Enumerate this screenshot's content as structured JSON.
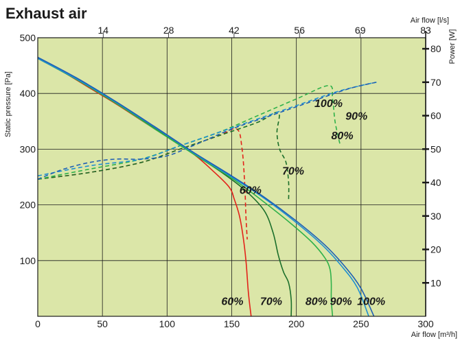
{
  "chart_data": {
    "type": "line",
    "title": "Exhaust air",
    "x_bottom": {
      "label": "Air flow [m³/h]",
      "range": [
        0,
        300
      ],
      "ticks": [
        "0",
        "50",
        "100",
        "150",
        "200",
        "250",
        "300"
      ]
    },
    "x_top": {
      "label": "Air flow [l/s]",
      "range": [
        0,
        83
      ],
      "ticks": [
        "14",
        "28",
        "42",
        "56",
        "69",
        "83"
      ]
    },
    "y_left": {
      "label": "Static pressure [Pa]",
      "range": [
        0,
        500
      ],
      "ticks": [
        "100",
        "200",
        "300",
        "400",
        "500"
      ]
    },
    "y_right": {
      "label": "Power [W]",
      "range": [
        0,
        83.3
      ],
      "ticks": [
        "10",
        "20",
        "30",
        "40",
        "50",
        "60",
        "70",
        "80"
      ]
    },
    "grid": true,
    "background": "#dbe6a8",
    "colors": {
      "60%": "#e32119",
      "70%": "#1a6e2a",
      "80%": "#2fb14a",
      "90%": "#1f8fd0",
      "100%": "#1f5fb4"
    },
    "series": [
      {
        "name": "60%",
        "kind": "pressure",
        "points": [
          [
            0,
            463
          ],
          [
            20,
            438
          ],
          [
            40,
            410
          ],
          [
            60,
            382
          ],
          [
            80,
            352
          ],
          [
            100,
            322
          ],
          [
            120,
            292
          ],
          [
            135,
            262
          ],
          [
            148,
            232
          ],
          [
            152,
            210
          ],
          [
            156,
            180
          ],
          [
            159,
            140
          ],
          [
            161,
            100
          ],
          [
            162,
            70
          ],
          [
            163,
            40
          ],
          [
            165,
            0
          ]
        ]
      },
      {
        "name": "70%",
        "kind": "pressure",
        "points": [
          [
            0,
            463
          ],
          [
            30,
            425
          ],
          [
            60,
            383
          ],
          [
            90,
            338
          ],
          [
            120,
            292
          ],
          [
            140,
            262
          ],
          [
            160,
            227
          ],
          [
            175,
            190
          ],
          [
            182,
            150
          ],
          [
            186,
            110
          ],
          [
            190,
            80
          ],
          [
            194,
            60
          ],
          [
            196,
            30
          ],
          [
            196,
            0
          ]
        ]
      },
      {
        "name": "80%",
        "kind": "pressure",
        "points": [
          [
            0,
            463
          ],
          [
            30,
            425
          ],
          [
            60,
            383
          ],
          [
            90,
            337
          ],
          [
            120,
            292
          ],
          [
            150,
            248
          ],
          [
            175,
            205
          ],
          [
            195,
            168
          ],
          [
            212,
            133
          ],
          [
            222,
            105
          ],
          [
            226,
            85
          ],
          [
            227,
            60
          ],
          [
            227,
            30
          ],
          [
            228,
            0
          ]
        ]
      },
      {
        "name": "90%",
        "kind": "pressure",
        "points": [
          [
            0,
            463
          ],
          [
            30,
            426
          ],
          [
            60,
            385
          ],
          [
            90,
            340
          ],
          [
            120,
            294
          ],
          [
            150,
            250
          ],
          [
            175,
            212
          ],
          [
            200,
            168
          ],
          [
            220,
            128
          ],
          [
            235,
            90
          ],
          [
            247,
            52
          ],
          [
            256,
            0
          ]
        ]
      },
      {
        "name": "100%",
        "kind": "pressure",
        "points": [
          [
            0,
            465
          ],
          [
            30,
            428
          ],
          [
            60,
            386
          ],
          [
            90,
            341
          ],
          [
            120,
            295
          ],
          [
            150,
            252
          ],
          [
            175,
            214
          ],
          [
            200,
            171
          ],
          [
            222,
            128
          ],
          [
            238,
            88
          ],
          [
            250,
            50
          ],
          [
            260,
            0
          ]
        ]
      },
      {
        "name": "60%",
        "kind": "power",
        "points": [
          [
            0,
            41
          ],
          [
            40,
            43
          ],
          [
            80,
            46
          ],
          [
            110,
            50
          ],
          [
            140,
            54
          ],
          [
            154,
            56
          ],
          [
            158,
            50
          ],
          [
            160,
            40
          ],
          [
            161,
            30
          ],
          [
            162,
            23
          ]
        ]
      },
      {
        "name": "70%",
        "kind": "power",
        "points": [
          [
            0,
            41
          ],
          [
            40,
            43
          ],
          [
            80,
            46
          ],
          [
            110,
            50
          ],
          [
            140,
            54
          ],
          [
            170,
            58
          ],
          [
            186,
            61
          ],
          [
            185,
            55
          ],
          [
            187,
            50
          ],
          [
            192,
            46
          ],
          [
            194,
            40
          ],
          [
            194,
            35
          ]
        ]
      },
      {
        "name": "80%",
        "kind": "power",
        "points": [
          [
            0,
            41
          ],
          [
            40,
            44
          ],
          [
            80,
            47
          ],
          [
            110,
            51
          ],
          [
            140,
            55
          ],
          [
            170,
            60
          ],
          [
            200,
            65
          ],
          [
            225,
            69
          ],
          [
            228,
            65
          ],
          [
            230,
            58
          ],
          [
            234,
            51
          ]
        ]
      },
      {
        "name": "90%",
        "kind": "power",
        "points": [
          [
            0,
            42
          ],
          [
            40,
            45
          ],
          [
            80,
            47
          ],
          [
            110,
            51
          ],
          [
            140,
            55
          ],
          [
            170,
            59
          ],
          [
            200,
            63
          ],
          [
            230,
            67
          ],
          [
            250,
            69
          ],
          [
            262,
            70
          ]
        ]
      },
      {
        "name": "100%",
        "kind": "power",
        "points": [
          [
            0,
            41
          ],
          [
            20,
            44
          ],
          [
            40,
            46
          ],
          [
            60,
            47
          ],
          [
            80,
            47
          ],
          [
            100,
            48
          ],
          [
            120,
            51
          ],
          [
            150,
            56
          ],
          [
            180,
            60
          ],
          [
            210,
            64
          ],
          [
            240,
            68
          ],
          [
            262,
            70
          ]
        ]
      }
    ],
    "annotations": [
      {
        "text": "100%",
        "x": 214,
        "y": 383
      },
      {
        "text": "90%",
        "x": 238,
        "y": 360
      },
      {
        "text": "80%",
        "x": 227,
        "y": 325
      },
      {
        "text": "70%",
        "x": 189,
        "y": 262
      },
      {
        "text": "60%",
        "x": 156,
        "y": 227
      },
      {
        "text": "60%",
        "x": 142,
        "y": 28
      },
      {
        "text": "70%",
        "x": 172,
        "y": 28
      },
      {
        "text": "80%",
        "x": 207,
        "y": 28
      },
      {
        "text": "90%",
        "x": 226,
        "y": 28
      },
      {
        "text": "100%",
        "x": 247,
        "y": 28
      }
    ]
  }
}
